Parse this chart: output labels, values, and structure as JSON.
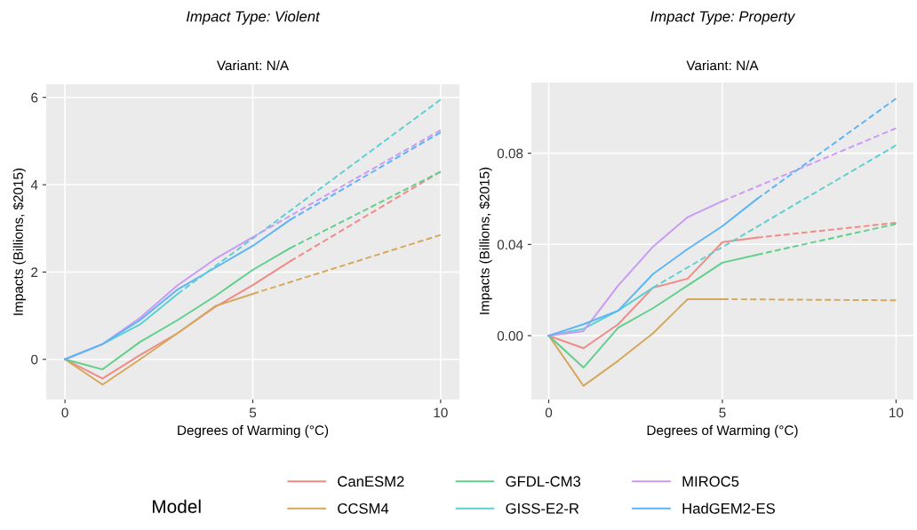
{
  "chart_data": [
    {
      "type": "line",
      "title": "Impact Type: Violent",
      "subtitle": "Variant: N/A",
      "xlabel": "Degrees of Warming (°C)",
      "ylabel": "Impacts (Billions, $2015)",
      "legend_title": "Model",
      "legend": "bottom",
      "grid": true,
      "line_style": "solid",
      "xlim": [
        -0.5,
        10.5
      ],
      "xticks": [
        0,
        5,
        10
      ],
      "ylim": [
        -0.92,
        6.3
      ],
      "yticks": [
        0,
        2,
        4,
        6
      ],
      "series": [
        {
          "name": "CanESM2",
          "color": "#f08a84",
          "x": [
            0,
            1,
            2,
            3,
            4,
            5,
            6
          ],
          "values": [
            0,
            -0.44,
            0.1,
            0.6,
            1.2,
            1.7,
            2.25
          ]
        },
        {
          "name": "CCSM4",
          "color": "#d4a85a",
          "x": [
            0,
            1,
            2,
            3,
            4,
            5
          ],
          "values": [
            0,
            -0.58,
            0.0,
            0.6,
            1.22,
            1.5
          ]
        },
        {
          "name": "GFDL-CM3",
          "color": "#5fcf8a",
          "x": [
            0,
            1,
            2,
            3,
            4,
            5,
            6
          ],
          "values": [
            0,
            -0.23,
            0.4,
            0.9,
            1.45,
            2.05,
            2.55
          ]
        },
        {
          "name": "GISS-E2-R",
          "color": "#5ccfd0",
          "x": [
            0,
            1,
            2,
            3
          ],
          "values": [
            0,
            0.35,
            0.8,
            1.5
          ]
        },
        {
          "name": "MIROC5",
          "color": "#c99af5",
          "x": [
            0,
            1,
            2,
            3,
            4,
            5
          ],
          "values": [
            0,
            0.35,
            0.95,
            1.7,
            2.3,
            2.8
          ]
        },
        {
          "name": "HadGEM2-ES",
          "color": "#5cb4f5",
          "x": [
            0,
            1,
            2,
            3,
            4,
            5,
            6
          ],
          "values": [
            0,
            0.35,
            0.9,
            1.6,
            2.1,
            2.6,
            3.2
          ]
        },
        {
          "color": "#f08a84",
          "line_style": "dashed",
          "x": [
            6,
            10
          ],
          "values": [
            2.25,
            4.3
          ]
        },
        {
          "color": "#d4a85a",
          "line_style": "dashed",
          "x": [
            5,
            10
          ],
          "values": [
            1.5,
            2.85
          ]
        },
        {
          "color": "#5fcf8a",
          "line_style": "dashed",
          "x": [
            6,
            10
          ],
          "values": [
            2.55,
            4.3
          ]
        },
        {
          "color": "#5ccfd0",
          "line_style": "dashed",
          "x": [
            3,
            10
          ],
          "values": [
            1.5,
            5.95
          ]
        },
        {
          "color": "#c99af5",
          "line_style": "dashed",
          "x": [
            5,
            10
          ],
          "values": [
            2.8,
            5.25
          ]
        },
        {
          "color": "#5cb4f5",
          "line_style": "dashed",
          "x": [
            6,
            10
          ],
          "values": [
            3.2,
            5.2
          ]
        }
      ]
    },
    {
      "type": "line",
      "title": "Impact Type: Property",
      "subtitle": "Variant: N/A",
      "xlabel": "Degrees of Warming (°C)",
      "ylabel": "Impacts (Billions, $2015)",
      "grid": true,
      "line_style": "solid",
      "xlim": [
        -0.5,
        10.5
      ],
      "xticks": [
        0,
        5,
        10
      ],
      "ylim": [
        -0.028,
        0.111
      ],
      "yticks": [
        {
          "value": 0,
          "label": "0.00"
        },
        {
          "value": 0.04,
          "label": "0.04"
        },
        {
          "value": 0.08,
          "label": "0.08"
        }
      ],
      "series": [
        {
          "name": "CanESM2",
          "color": "#f08a84",
          "x": [
            0,
            1,
            2,
            3,
            4,
            5,
            6
          ],
          "values": [
            0,
            -0.0055,
            0.005,
            0.021,
            0.025,
            0.041,
            0.043
          ]
        },
        {
          "name": "CCSM4",
          "color": "#d4a85a",
          "x": [
            0,
            1,
            2,
            3,
            4,
            5
          ],
          "values": [
            0,
            -0.022,
            -0.011,
            0.001,
            0.016,
            0.016
          ]
        },
        {
          "name": "GFDL-CM3",
          "color": "#5fcf8a",
          "x": [
            0,
            1,
            2,
            3,
            4,
            5,
            6
          ],
          "values": [
            0,
            -0.014,
            0.0035,
            0.012,
            0.022,
            0.032,
            0.0355
          ]
        },
        {
          "name": "GISS-E2-R",
          "color": "#5ccfd0",
          "x": [
            0,
            1,
            2,
            3
          ],
          "values": [
            0,
            0.003,
            0.011,
            0.021
          ]
        },
        {
          "name": "MIROC5",
          "color": "#c99af5",
          "x": [
            0,
            1,
            2,
            3,
            4,
            5
          ],
          "values": [
            0,
            0.002,
            0.022,
            0.039,
            0.052,
            0.059
          ]
        },
        {
          "name": "HadGEM2-ES",
          "color": "#5cb4f5",
          "x": [
            0,
            1,
            2,
            3,
            4,
            5,
            6
          ],
          "values": [
            0,
            0.005,
            0.011,
            0.027,
            0.038,
            0.048,
            0.06
          ]
        },
        {
          "color": "#f08a84",
          "line_style": "dashed",
          "x": [
            6,
            10
          ],
          "values": [
            0.043,
            0.0495
          ]
        },
        {
          "color": "#d4a85a",
          "line_style": "dashed",
          "x": [
            5,
            10
          ],
          "values": [
            0.016,
            0.0155
          ]
        },
        {
          "color": "#5fcf8a",
          "line_style": "dashed",
          "x": [
            6,
            10
          ],
          "values": [
            0.0355,
            0.049
          ]
        },
        {
          "color": "#5ccfd0",
          "line_style": "dashed",
          "x": [
            3,
            10
          ],
          "values": [
            0.021,
            0.0835
          ]
        },
        {
          "color": "#c99af5",
          "line_style": "dashed",
          "x": [
            5,
            10
          ],
          "values": [
            0.059,
            0.091
          ]
        },
        {
          "color": "#5cb4f5",
          "line_style": "dashed",
          "x": [
            6,
            10
          ],
          "values": [
            0.06,
            0.104
          ]
        }
      ]
    }
  ]
}
